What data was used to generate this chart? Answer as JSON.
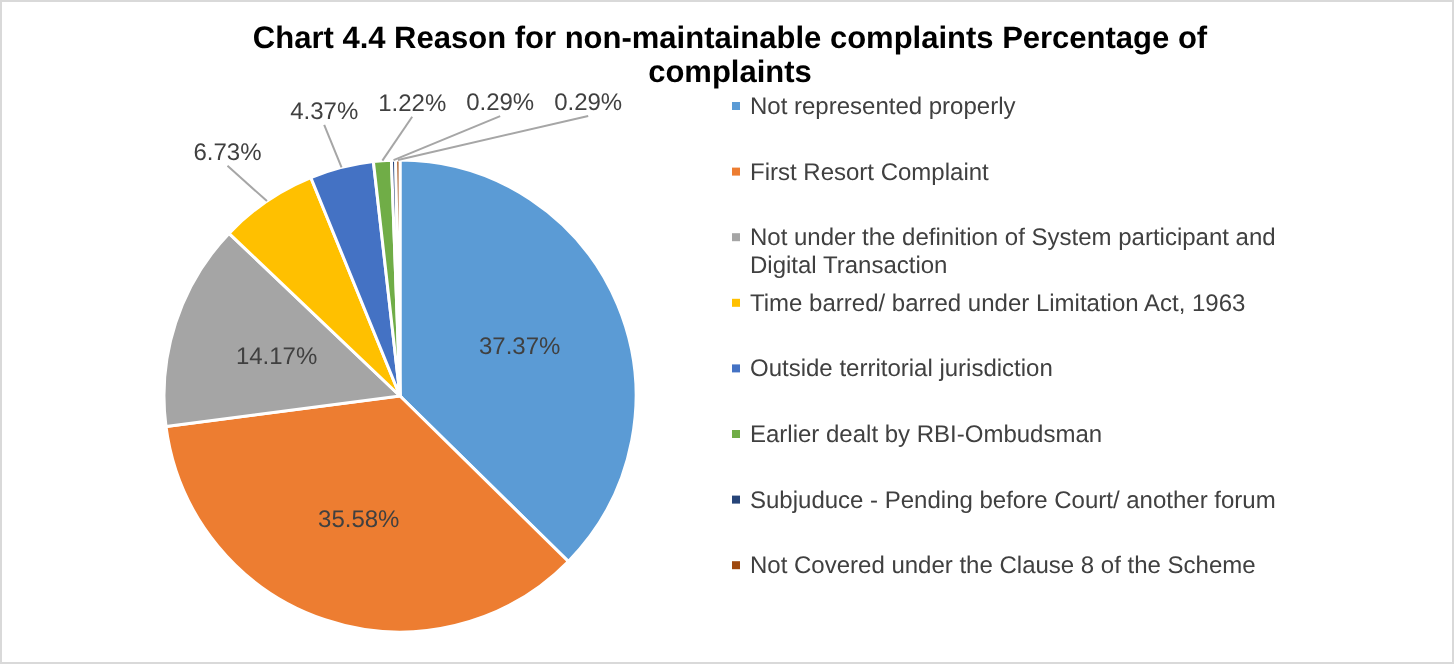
{
  "chart_data": {
    "type": "pie",
    "title": "Chart 4.4 Reason for non-maintainable complaints Percentage of complaints",
    "categories": [
      "Not represented properly",
      "First Resort Complaint",
      "Not under the definition of System participant and Digital Transaction",
      "Time barred/ barred under Limitation Act, 1963",
      "Outside territorial jurisdiction",
      "Earlier dealt by RBI-Ombudsman",
      "Subjuduce - Pending before Court/ another forum",
      "Not Covered under the Clause 8 of the Scheme"
    ],
    "values": [
      37.37,
      35.58,
      14.17,
      6.73,
      4.37,
      1.22,
      0.29,
      0.29
    ],
    "value_labels": [
      "37.37%",
      "35.58%",
      "14.17%",
      "6.73%",
      "4.37%",
      "1.22%",
      "0.29%",
      "0.29%"
    ],
    "colors": [
      "#5b9bd5",
      "#ed7d31",
      "#a5a5a5",
      "#ffc000",
      "#4472c4",
      "#70ad47",
      "#264478",
      "#9e480e"
    ],
    "legend": "right"
  }
}
